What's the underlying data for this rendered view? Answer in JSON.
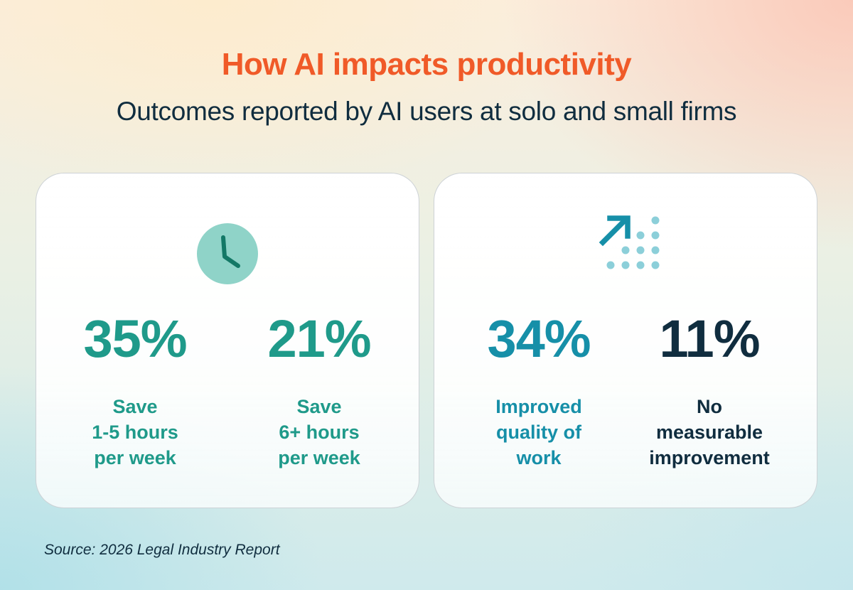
{
  "header": {
    "title": "How AI impacts productivity",
    "subtitle": "Outcomes reported by AI users at solo and small firms"
  },
  "colors": {
    "title": "#f05a28",
    "text_dark": "#102d3f",
    "teal": "#1f9a8a",
    "blue_teal": "#168fa8",
    "clock_bg": "#8fd3c8",
    "dots": "#8ccfd9"
  },
  "cards": [
    {
      "icon": "clock-icon",
      "stats": [
        {
          "percent": "35%",
          "label_lines": [
            "Save",
            "1-5 hours",
            "per week"
          ],
          "value": 35
        },
        {
          "percent": "21%",
          "label_lines": [
            "Save",
            "6+ hours",
            "per week"
          ],
          "value": 21
        }
      ]
    },
    {
      "icon": "trend-up-dots-icon",
      "stats": [
        {
          "percent": "34%",
          "label_lines": [
            "Improved",
            "quality of",
            "work"
          ],
          "value": 34
        },
        {
          "percent": "11%",
          "label_lines": [
            "No",
            "measurable",
            "improvement"
          ],
          "value": 11
        }
      ]
    }
  ],
  "footer": {
    "source": "Source: 2026 Legal Industry Report"
  }
}
